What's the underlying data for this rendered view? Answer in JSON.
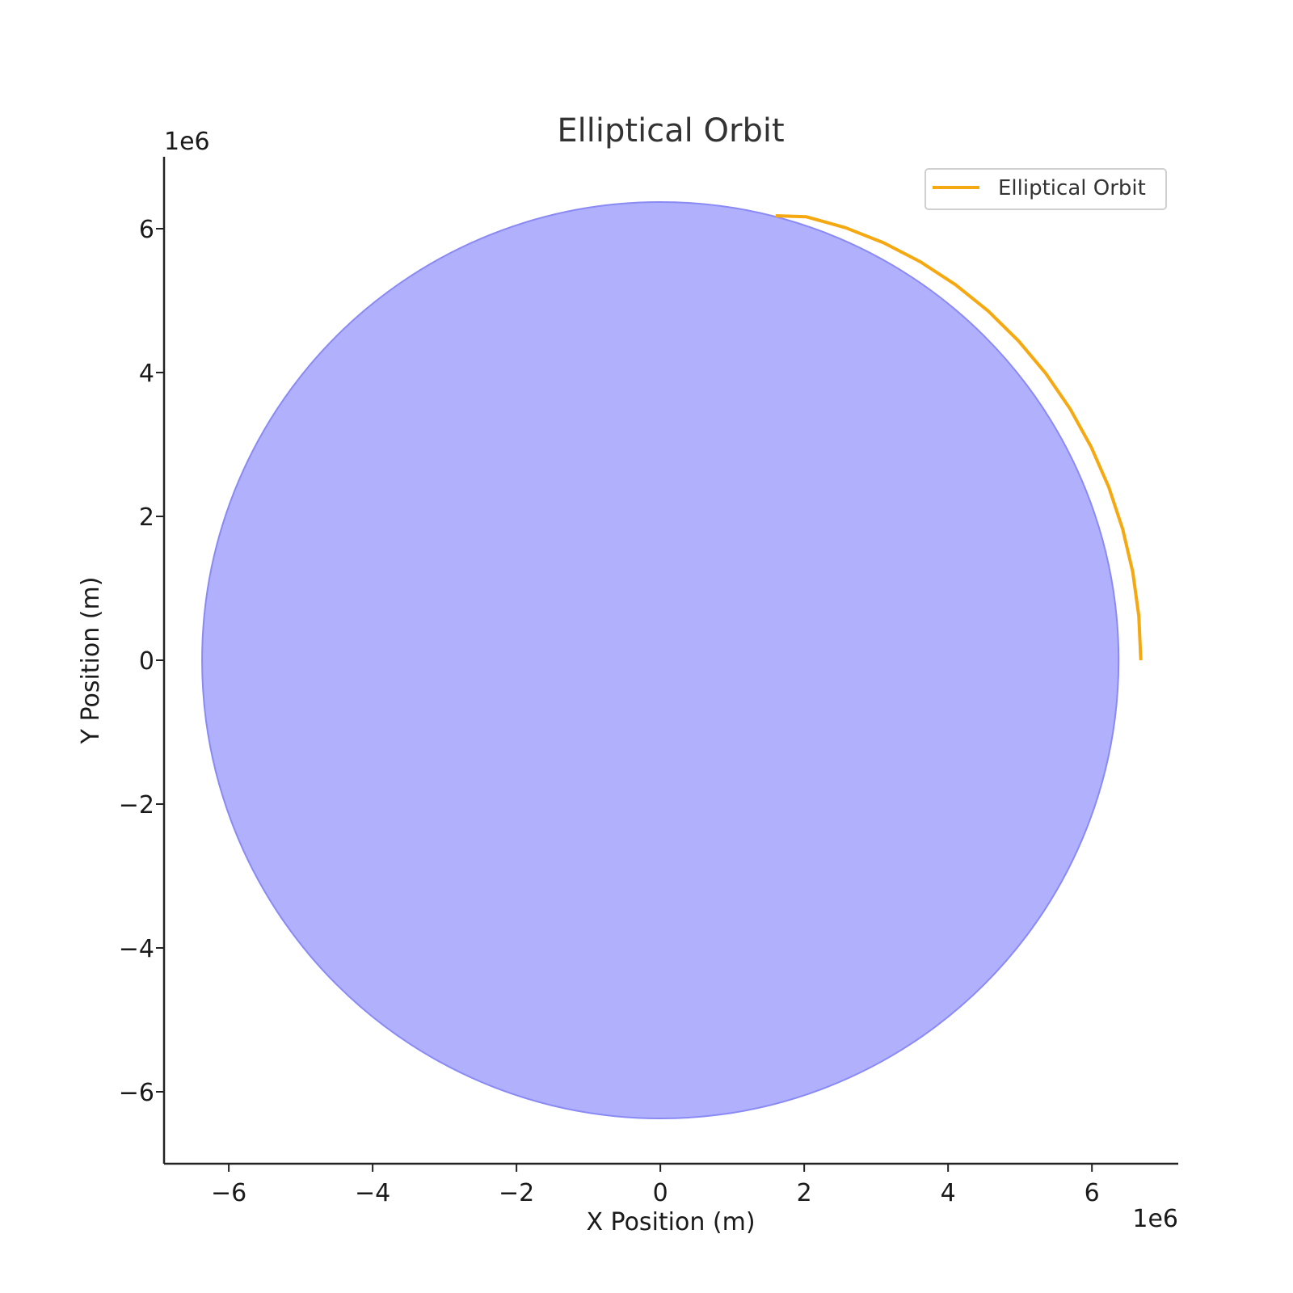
{
  "chart_data": {
    "type": "line",
    "title": "Elliptical Orbit",
    "xlabel": "X Position (m)",
    "ylabel": "Y Position (m)",
    "x_offset_label": "1e6",
    "y_offset_label": "1e6",
    "xlim": [
      -6.9,
      7.2
    ],
    "ylim": [
      -7.0,
      7.0
    ],
    "x_scale": 1000000,
    "y_scale": 1000000,
    "x_ticks": [
      -6,
      -4,
      -2,
      0,
      2,
      4,
      6
    ],
    "y_ticks": [
      -6,
      -4,
      -2,
      0,
      2,
      4,
      6
    ],
    "x_tick_labels": [
      "−6",
      "−4",
      "−2",
      "0",
      "2",
      "4",
      "6"
    ],
    "y_tick_labels": [
      "−6",
      "−4",
      "−2",
      "0",
      "2",
      "4",
      "6"
    ],
    "grid": false,
    "legend_position": "top-right",
    "planet": {
      "center": [
        0,
        0
      ],
      "radius": 6.371,
      "fill_color": "#b0b0fc",
      "edge_color": "#8a8af5"
    },
    "series": [
      {
        "name": "Elliptical Orbit",
        "color": "#f5a80f",
        "x": [
          6.68,
          6.652,
          6.567,
          6.427,
          6.235,
          5.991,
          5.699,
          5.36,
          4.979,
          4.559,
          4.104,
          3.618,
          3.106,
          2.574,
          2.026,
          1.603
        ],
        "y": [
          0.0,
          0.616,
          1.227,
          1.825,
          2.405,
          2.962,
          3.491,
          3.986,
          4.441,
          4.855,
          5.221,
          5.538,
          5.803,
          6.013,
          6.166,
          6.18
        ]
      }
    ]
  }
}
